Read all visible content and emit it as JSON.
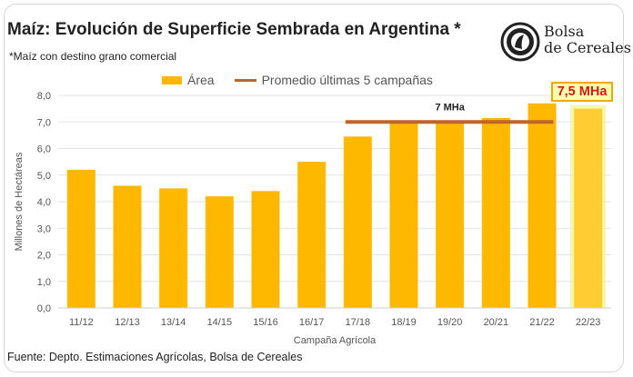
{
  "header": {
    "title": "Maíz: Evolución de Superficie Sembrada en Argentina *",
    "subtitle": "*Maíz con destino grano comercial"
  },
  "logo": {
    "line1": "Bolsa",
    "line2": "de Cereales"
  },
  "footer": {
    "source": "Fuente: Depto. Estimaciones Agrícolas, Bolsa de Cereales"
  },
  "colors": {
    "bar": "#ffb800",
    "bar_highlight": "#ffcc33",
    "average_line": "#c0652a",
    "highlight_label_text": "#d21a1a"
  },
  "chart_data": {
    "type": "bar",
    "xlabel": "Campaña Agrícola",
    "ylabel": "Millones de Hectáreas",
    "ylim": [
      0,
      8
    ],
    "ytick_step": 1,
    "ytick_labels": [
      "0,0",
      "1,0",
      "2,0",
      "3,0",
      "4,0",
      "5,0",
      "6,0",
      "7,0",
      "8,0"
    ],
    "grid": true,
    "legend_position": "top-center",
    "categories": [
      "11/12",
      "12/13",
      "13/14",
      "14/15",
      "15/16",
      "16/17",
      "17/18",
      "18/19",
      "19/20",
      "20/21",
      "21/22",
      "22/23"
    ],
    "series": [
      {
        "name": "Área",
        "values": [
          5.2,
          4.6,
          4.5,
          4.2,
          4.4,
          5.5,
          6.45,
          6.95,
          6.95,
          7.15,
          7.7,
          7.5
        ]
      }
    ],
    "average_line": {
      "name": "Promedio últimas 5 campañas",
      "value": 7.0,
      "from_category": "17/18",
      "to_category": "21/22",
      "label": "7 MHa"
    },
    "highlight": {
      "category": "22/23",
      "label": "7,5 MHa"
    }
  }
}
